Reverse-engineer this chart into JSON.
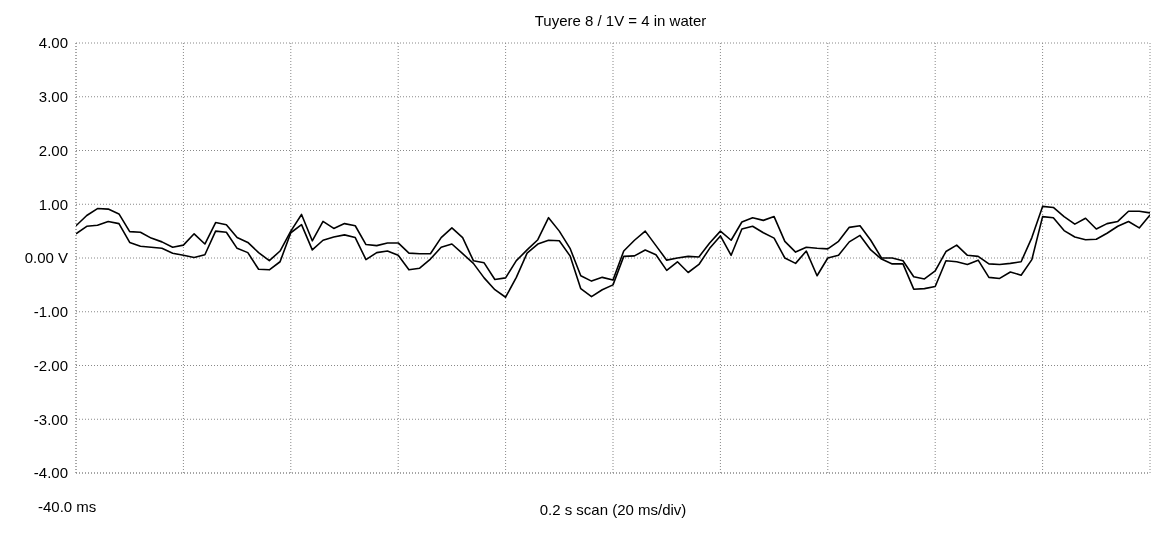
{
  "chart_data": {
    "type": "line",
    "title": "Tuyere 8 / 1V = 4 in water",
    "xlabel": "0.2 s scan (20 ms/div)",
    "annotations": [
      "-40.0 ms"
    ],
    "categories": [
      null,
      null,
      null,
      null,
      null,
      null,
      null,
      null,
      null,
      null,
      null,
      null,
      null,
      null,
      null,
      null,
      null,
      null,
      null,
      null,
      null,
      null,
      null,
      null,
      null,
      null,
      null,
      null,
      null,
      null,
      null,
      null,
      null,
      null,
      null,
      null,
      null,
      null,
      null,
      null,
      null,
      null,
      null,
      null,
      null,
      null,
      null,
      null,
      null,
      null,
      null,
      null,
      null,
      null,
      null,
      null,
      null,
      null,
      null,
      null,
      null,
      null,
      null,
      null,
      null,
      null,
      null,
      null,
      null,
      null,
      null,
      null,
      null,
      null,
      null,
      null,
      null,
      null,
      null,
      null,
      null,
      null,
      null,
      null,
      null,
      null,
      null,
      null,
      null,
      null,
      null,
      null,
      null,
      null,
      null,
      null,
      null,
      null,
      null,
      null,
      null
    ],
    "ylim": [
      -4,
      4
    ],
    "yticks": [
      {
        "value": -4,
        "label": "-4.00"
      },
      {
        "value": -3,
        "label": "-3.00"
      },
      {
        "value": -2,
        "label": "-2.00"
      },
      {
        "value": -1,
        "label": "-1.00"
      },
      {
        "value": 0,
        "label": "0.00 V"
      },
      {
        "value": 1,
        "label": "1.00"
      },
      {
        "value": 2,
        "label": "2.00"
      },
      {
        "value": 3,
        "label": "3.00"
      },
      {
        "value": 4,
        "label": "4.00"
      }
    ],
    "grid": true,
    "line_style": "solid",
    "series": [
      {
        "color": "#000000",
        "values": [
          0.6,
          0.79,
          0.92,
          0.91,
          0.82,
          0.49,
          0.48,
          0.37,
          0.3,
          0.2,
          0.24,
          0.45,
          0.26,
          0.66,
          0.62,
          0.38,
          0.29,
          0.1,
          -0.05,
          0.13,
          0.5,
          0.81,
          0.32,
          0.68,
          0.55,
          0.64,
          0.6,
          0.25,
          0.23,
          0.28,
          0.28,
          0.09,
          0.08,
          0.08,
          0.38,
          0.56,
          0.38,
          -0.05,
          -0.09,
          -0.4,
          -0.37,
          -0.05,
          0.15,
          0.34,
          0.75,
          0.5,
          0.18,
          -0.33,
          -0.43,
          -0.36,
          -0.41,
          0.13,
          0.33,
          0.5,
          0.23,
          -0.04,
          0,
          0.03,
          0.02,
          0.28,
          0.5,
          0.33,
          0.67,
          0.75,
          0.7,
          0.77,
          0.31,
          0.11,
          0.2,
          0.18,
          0.17,
          0.31,
          0.57,
          0.6,
          0.33,
          0,
          0,
          -0.05,
          -0.35,
          -0.39,
          -0.24,
          0.12,
          0.24,
          0.05,
          0.03,
          -0.11,
          -0.12,
          -0.1,
          -0.07,
          0.38,
          0.96,
          0.94,
          0.77,
          0.63,
          0.74,
          0.54,
          0.64,
          0.68,
          0.87,
          0.87,
          0.84
        ]
      },
      {
        "color": "#000000",
        "values": [
          0.45,
          0.59,
          0.61,
          0.68,
          0.64,
          0.29,
          0.22,
          0.2,
          0.18,
          0.09,
          0.05,
          0.01,
          0.06,
          0.5,
          0.48,
          0.18,
          0.1,
          -0.21,
          -0.22,
          -0.07,
          0.47,
          0.62,
          0.15,
          0.33,
          0.39,
          0.43,
          0.38,
          -0.03,
          0.1,
          0.13,
          0.05,
          -0.22,
          -0.19,
          -0.02,
          0.2,
          0.26,
          0.08,
          -0.1,
          -0.37,
          -0.59,
          -0.73,
          -0.36,
          0.09,
          0.26,
          0.33,
          0.32,
          0.04,
          -0.57,
          -0.72,
          -0.59,
          -0.5,
          0.03,
          0.04,
          0.15,
          0.06,
          -0.23,
          -0.07,
          -0.27,
          -0.12,
          0.18,
          0.41,
          0.05,
          0.54,
          0.59,
          0.47,
          0.37,
          0,
          -0.1,
          0.13,
          -0.33,
          0,
          0.05,
          0.3,
          0.42,
          0.15,
          -0.02,
          -0.11,
          -0.11,
          -0.58,
          -0.57,
          -0.53,
          -0.05,
          -0.07,
          -0.12,
          -0.04,
          -0.36,
          -0.38,
          -0.26,
          -0.32,
          -0.03,
          0.77,
          0.75,
          0.51,
          0.39,
          0.34,
          0.35,
          0.46,
          0.59,
          0.68,
          0.56,
          0.8
        ]
      }
    ]
  }
}
